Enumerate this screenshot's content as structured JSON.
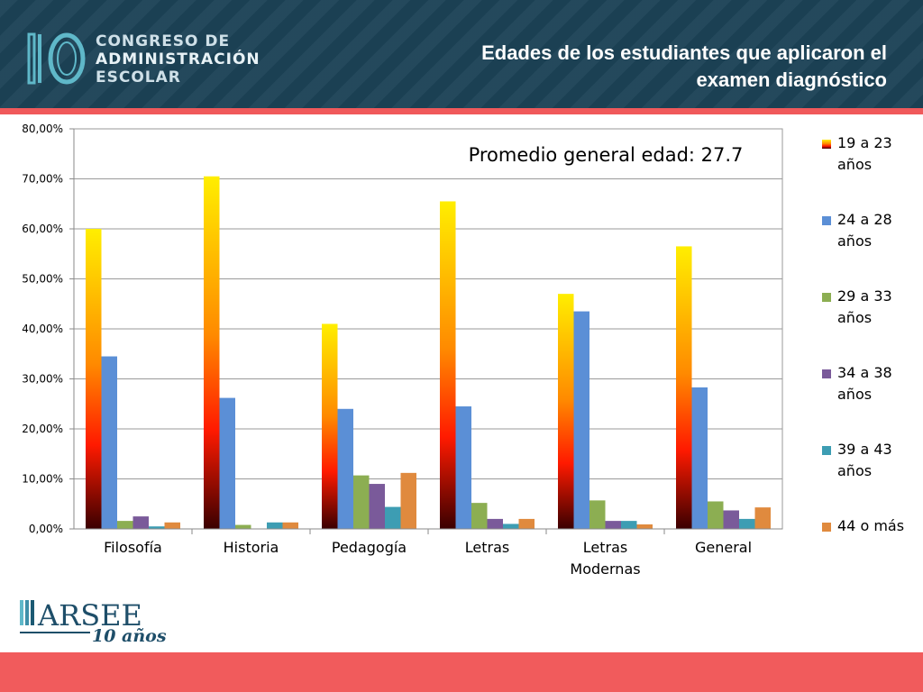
{
  "header": {
    "logo_number": "10",
    "logo_lines": [
      "CONGRESO DE",
      "ADMINISTRACIÓN",
      "ESCOLAR"
    ],
    "title_lines": [
      "Edades de los estudiantes que aplicaron el",
      "examen diagnóstico"
    ]
  },
  "footer": {
    "logo_text": "ARSEE",
    "logo_sub": "10 años"
  },
  "colors": {
    "header_bg": "#1c4256",
    "accent_red": "#f15b5c",
    "gradient_top": "#ffee00",
    "gradient_mid": "#ff1a00",
    "gradient_bottom": "#3a0000"
  },
  "chart_data": {
    "type": "bar",
    "annotation": "Promedio general edad: 27.7",
    "categories": [
      [
        "Filosofía"
      ],
      [
        "Historia"
      ],
      [
        "Pedagogía"
      ],
      [
        "Letras"
      ],
      [
        "Letras",
        "Modernas"
      ],
      [
        "General"
      ]
    ],
    "y_ticks": [
      "0,00%",
      "10,00%",
      "20,00%",
      "30,00%",
      "40,00%",
      "50,00%",
      "60,00%",
      "70,00%",
      "80,00%"
    ],
    "ylim": [
      0,
      80
    ],
    "grid": true,
    "legend_position": "right",
    "series": [
      {
        "legend": [
          "19 a 23",
          "años"
        ],
        "color": "gradient",
        "values": [
          60.0,
          70.5,
          41.0,
          65.5,
          47.0,
          56.5
        ]
      },
      {
        "legend": [
          "24 a 28",
          "años"
        ],
        "color": "#5b8fd6",
        "values": [
          34.5,
          26.2,
          24.0,
          24.5,
          43.5,
          28.3
        ]
      },
      {
        "legend": [
          "29 a 33",
          "años"
        ],
        "color": "#8cae52",
        "values": [
          1.6,
          0.8,
          10.7,
          5.2,
          5.7,
          5.5
        ]
      },
      {
        "legend": [
          "34 a 38",
          "años"
        ],
        "color": "#7a5a9a",
        "values": [
          2.5,
          0.0,
          9.0,
          2.0,
          1.6,
          3.7
        ]
      },
      {
        "legend": [
          "39 a 43",
          "años"
        ],
        "color": "#3d9db3",
        "values": [
          0.5,
          1.3,
          4.4,
          1.0,
          1.6,
          2.0
        ]
      },
      {
        "legend": [
          "44 o más"
        ],
        "color": "#e08a3e",
        "values": [
          1.3,
          1.3,
          11.2,
          2.0,
          0.9,
          4.3
        ]
      }
    ]
  }
}
